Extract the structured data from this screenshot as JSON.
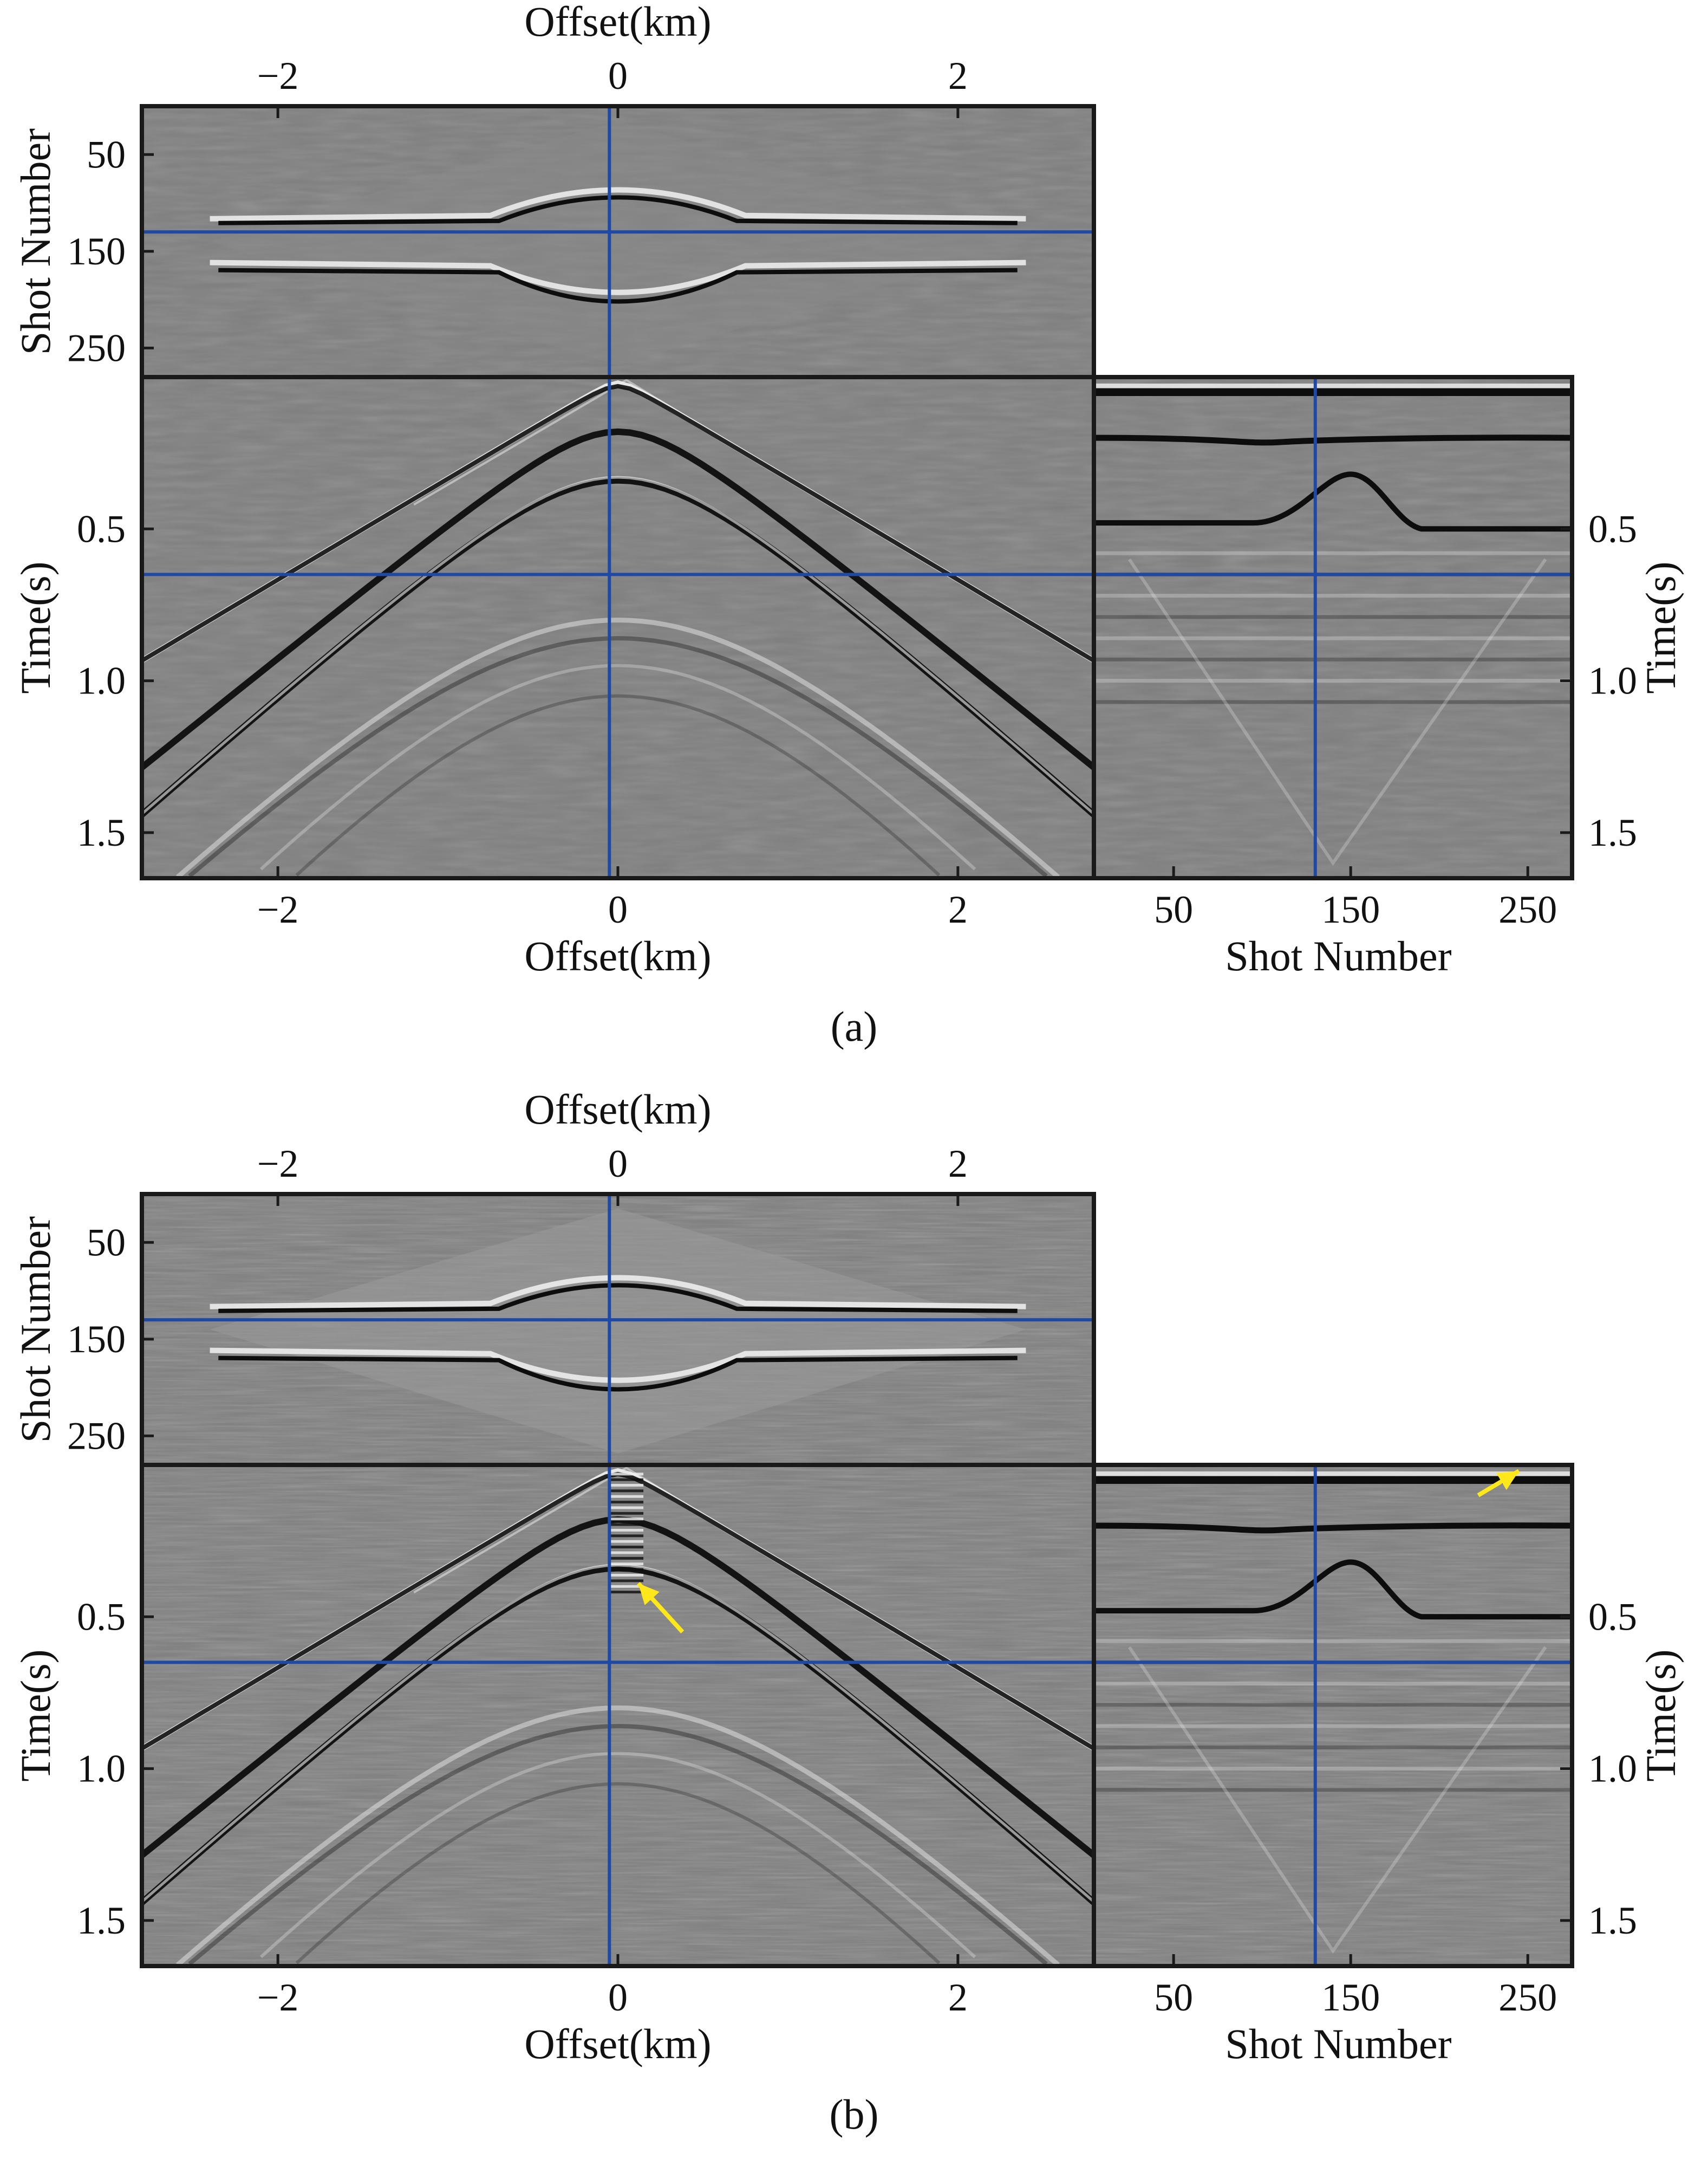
{
  "figure": {
    "panels": [
      {
        "id": "a",
        "caption": "(a)",
        "arrows": false
      },
      {
        "id": "b",
        "caption": "(b)",
        "arrows": true
      }
    ]
  },
  "colors": {
    "background": "#7f7f7f",
    "frame": "#1a1a1a",
    "crosshair": "#1f49a6",
    "arrow": "#ffe81a",
    "event_dark": "#0d0d0d",
    "event_light": "#f2f2f2"
  },
  "chart_data": [
    {
      "panel": "a",
      "type": "heatmap",
      "title": "(a)",
      "subplots": {
        "top": {
          "xlabel": "Offset(km)",
          "ylabel": "Shot Number",
          "xticks": [
            "−2",
            "0",
            "2"
          ],
          "xtick_values": [
            -2,
            0,
            2
          ],
          "yticks": [
            "50",
            "150",
            "250"
          ],
          "ytick_values": [
            50,
            150,
            250
          ],
          "xlim": [
            -2.8,
            2.8
          ],
          "ylim": [
            0,
            280
          ]
        },
        "main": {
          "xlabel": "Offset(km)",
          "ylabel": "Time(s)",
          "xticks": [
            "−2",
            "0",
            "2"
          ],
          "xtick_values": [
            -2,
            0,
            2
          ],
          "yticks": [
            "0.5",
            "1.0",
            "1.5"
          ],
          "ytick_values": [
            0.5,
            1.0,
            1.5
          ],
          "xlim": [
            -2.8,
            2.8
          ],
          "ylim": [
            1.65,
            0
          ]
        },
        "side": {
          "xlabel": "Shot Number",
          "ylabel": "Time(s)",
          "xticks": [
            "50",
            "150",
            "250"
          ],
          "xtick_values": [
            50,
            150,
            250
          ],
          "yticks": [
            "0.5",
            "1.0",
            "1.5"
          ],
          "ytick_values": [
            0.5,
            1.0,
            1.5
          ],
          "xlim": [
            5,
            275
          ],
          "ylim": [
            1.65,
            0
          ]
        }
      },
      "crosshair": {
        "offset_km": -0.05,
        "time_s": 0.65,
        "shot": 130
      }
    },
    {
      "panel": "b",
      "type": "heatmap",
      "title": "(b)",
      "subplots": {
        "top": {
          "xlabel": "Offset(km)",
          "ylabel": "Shot Number",
          "xticks": [
            "−2",
            "0",
            "2"
          ],
          "xtick_values": [
            -2,
            0,
            2
          ],
          "yticks": [
            "50",
            "150",
            "250"
          ],
          "ytick_values": [
            50,
            150,
            250
          ],
          "xlim": [
            -2.8,
            2.8
          ],
          "ylim": [
            0,
            280
          ]
        },
        "main": {
          "xlabel": "Offset(km)",
          "ylabel": "Time(s)",
          "xticks": [
            "−2",
            "0",
            "2"
          ],
          "xtick_values": [
            -2,
            0,
            2
          ],
          "yticks": [
            "0.5",
            "1.0",
            "1.5"
          ],
          "ytick_values": [
            0.5,
            1.0,
            1.5
          ],
          "xlim": [
            -2.8,
            2.8
          ],
          "ylim": [
            1.65,
            0
          ]
        },
        "side": {
          "xlabel": "Shot Number",
          "ylabel": "Time(s)",
          "xticks": [
            "50",
            "150",
            "250"
          ],
          "xtick_values": [
            50,
            150,
            250
          ],
          "yticks": [
            "0.5",
            "1.0",
            "1.5"
          ],
          "ytick_values": [
            0.5,
            1.0,
            1.5
          ],
          "xlim": [
            5,
            275
          ],
          "ylim": [
            1.65,
            0
          ]
        }
      },
      "crosshair": {
        "offset_km": -0.05,
        "time_s": 0.65,
        "shot": 130
      }
    }
  ]
}
